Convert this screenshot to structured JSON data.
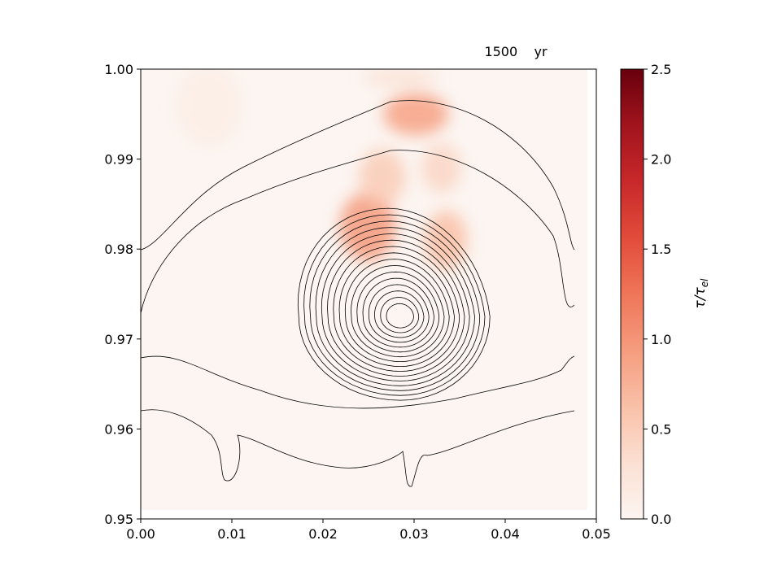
{
  "chart_data": {
    "type": "heatmap",
    "title": "1500    yr",
    "xlabel": "",
    "ylabel": "",
    "xlim": [
      0.0,
      0.05
    ],
    "ylim": [
      0.95,
      1.0
    ],
    "x_ticks": [
      "0.00",
      "0.01",
      "0.02",
      "0.03",
      "0.04",
      "0.05"
    ],
    "x_tick_values": [
      0.0,
      0.01,
      0.02,
      0.03,
      0.04,
      0.05
    ],
    "y_ticks": [
      "0.95",
      "0.96",
      "0.97",
      "0.98",
      "0.99",
      "1.00"
    ],
    "y_tick_values": [
      0.95,
      0.96,
      0.97,
      0.98,
      0.99,
      1.0
    ],
    "colorbar": {
      "label": "τ/τ",
      "label_subscript": "el",
      "range": [
        0.0,
        2.5
      ],
      "ticks": [
        "0.0",
        "0.5",
        "1.0",
        "1.5",
        "2.0",
        "2.5"
      ],
      "tick_values": [
        0.0,
        0.5,
        1.0,
        1.5,
        2.0,
        2.5
      ],
      "colormap": "Reds",
      "color_low": "#fbf1ec",
      "color_high": "#67000d"
    },
    "field_extent": {
      "x": [
        0.0,
        0.049
      ],
      "y": [
        0.951,
        1.0
      ]
    },
    "field_peaks": [
      {
        "x": 0.0302,
        "y": 0.995,
        "value": 0.85
      },
      {
        "x": 0.0249,
        "y": 0.9825,
        "value": 0.9
      },
      {
        "x": 0.0335,
        "y": 0.981,
        "value": 0.6
      },
      {
        "x": 0.0265,
        "y": 0.988,
        "value": 0.5
      },
      {
        "x": 0.033,
        "y": 0.989,
        "value": 0.4
      },
      {
        "x": 0.0285,
        "y": 0.999,
        "value": 0.3
      },
      {
        "x": 0.0075,
        "y": 0.996,
        "value": 0.1
      }
    ],
    "contours": {
      "color": "#000000",
      "vortex_center": {
        "x": 0.0285,
        "y": 0.9725
      }
    }
  }
}
